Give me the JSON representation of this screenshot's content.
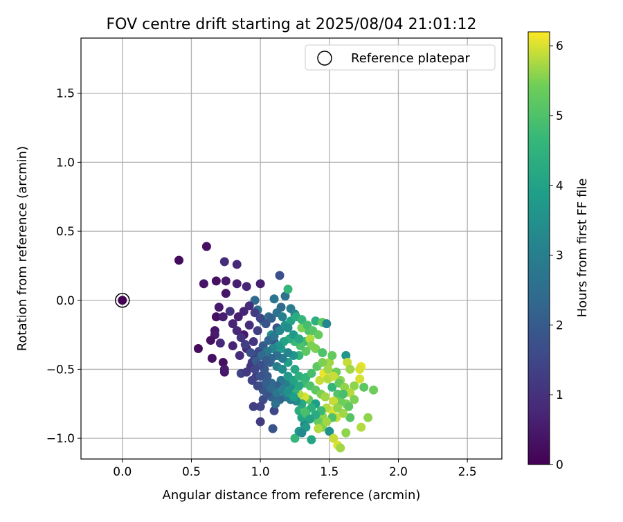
{
  "chart_data": {
    "type": "scatter",
    "title": "FOV centre drift starting at 2025/08/04 21:01:12",
    "xlabel": "Angular distance from reference (arcmin)",
    "ylabel": "Rotation from reference (arcmin)",
    "xlim": [
      -0.3,
      2.75
    ],
    "ylim": [
      -1.15,
      1.9
    ],
    "x_ticks": [
      0.0,
      0.5,
      1.0,
      1.5,
      2.0,
      2.5
    ],
    "y_ticks": [
      -1.0,
      -0.5,
      0.0,
      0.5,
      1.0,
      1.5
    ],
    "x_tick_labels": [
      "0.0",
      "0.5",
      "1.0",
      "1.5",
      "2.0",
      "2.5"
    ],
    "y_tick_labels": [
      "−1.0",
      "−0.5",
      "0.0",
      "0.5",
      "1.0",
      "1.5"
    ],
    "grid": true,
    "colormap": "viridis",
    "colorbar": {
      "label": "Hours from first FF file",
      "range": [
        0,
        6.2
      ],
      "ticks": [
        0,
        1,
        2,
        3,
        4,
        5,
        6
      ],
      "tick_labels": [
        "0",
        "1",
        "2",
        "3",
        "4",
        "5",
        "6"
      ]
    },
    "legend": {
      "position": "upper right",
      "entries": [
        {
          "label": "Reference platepar",
          "marker": "open-circle"
        }
      ]
    },
    "reference_point": {
      "x": 0.0,
      "y": 0.0,
      "hours": 0.0
    },
    "points": [
      [
        0.0,
        0.0,
        0.0
      ],
      [
        0.41,
        0.29,
        0.2
      ],
      [
        0.61,
        0.39,
        0.3
      ],
      [
        0.59,
        0.12,
        0.4
      ],
      [
        0.68,
        0.14,
        0.3
      ],
      [
        0.75,
        0.14,
        0.5
      ],
      [
        0.75,
        0.05,
        0.4
      ],
      [
        0.74,
        0.28,
        0.9
      ],
      [
        0.83,
        0.26,
        0.8
      ],
      [
        0.83,
        0.12,
        0.6
      ],
      [
        0.9,
        0.1,
        0.7
      ],
      [
        1.0,
        0.12,
        0.6
      ],
      [
        1.14,
        0.18,
        1.7
      ],
      [
        0.7,
        -0.05,
        0.5
      ],
      [
        0.68,
        -0.12,
        0.3
      ],
      [
        0.73,
        -0.12,
        0.6
      ],
      [
        0.78,
        -0.08,
        1.0
      ],
      [
        0.67,
        -0.22,
        0.4
      ],
      [
        0.67,
        -0.25,
        0.5
      ],
      [
        0.64,
        -0.29,
        0.3
      ],
      [
        0.71,
        -0.31,
        0.8
      ],
      [
        0.55,
        -0.35,
        0.2
      ],
      [
        0.65,
        -0.42,
        0.3
      ],
      [
        0.73,
        -0.45,
        0.3
      ],
      [
        0.74,
        -0.52,
        0.4
      ],
      [
        0.74,
        -0.5,
        0.5
      ],
      [
        0.8,
        -0.33,
        0.7
      ],
      [
        0.85,
        -0.4,
        0.9
      ],
      [
        0.86,
        -0.53,
        1.4
      ],
      [
        0.88,
        -0.25,
        0.5
      ],
      [
        0.9,
        -0.35,
        0.8
      ],
      [
        0.92,
        -0.18,
        0.9
      ],
      [
        0.95,
        -0.3,
        1.1
      ],
      [
        0.98,
        -0.22,
        1.3
      ],
      [
        0.94,
        -0.45,
        1.2
      ],
      [
        0.97,
        -0.55,
        1.3
      ],
      [
        1.0,
        -0.62,
        1.5
      ],
      [
        1.02,
        -0.72,
        1.6
      ],
      [
        1.0,
        -0.77,
        1.4
      ],
      [
        0.95,
        -0.77,
        1.3
      ],
      [
        1.0,
        -0.88,
        1.2
      ],
      [
        1.1,
        -0.8,
        1.5
      ],
      [
        1.09,
        -0.93,
        1.8
      ],
      [
        1.05,
        -0.4,
        1.6
      ],
      [
        1.1,
        -0.3,
        1.8
      ],
      [
        1.12,
        -0.2,
        1.9
      ],
      [
        1.15,
        -0.05,
        2.4
      ],
      [
        1.18,
        0.03,
        2.6
      ],
      [
        1.22,
        -0.06,
        2.9
      ],
      [
        1.25,
        -0.1,
        3.2
      ],
      [
        1.2,
        0.08,
        4.6
      ],
      [
        1.1,
        0.01,
        2.7
      ],
      [
        1.06,
        -0.12,
        2.4
      ],
      [
        0.98,
        -0.07,
        2.6
      ],
      [
        0.96,
        0.0,
        2.4
      ],
      [
        1.02,
        -0.15,
        3.1
      ],
      [
        1.08,
        -0.25,
        3.5
      ],
      [
        1.15,
        -0.35,
        3.8
      ],
      [
        1.2,
        -0.45,
        3.9
      ],
      [
        1.25,
        -0.5,
        4.2
      ],
      [
        1.28,
        -0.4,
        4.6
      ],
      [
        1.32,
        -0.3,
        4.8
      ],
      [
        1.35,
        -0.22,
        5.0
      ],
      [
        1.4,
        -0.15,
        4.4
      ],
      [
        1.45,
        -0.16,
        5.2
      ],
      [
        1.48,
        -0.17,
        3.2
      ],
      [
        1.3,
        -0.2,
        5.5
      ],
      [
        1.36,
        -0.28,
        5.8
      ],
      [
        1.4,
        -0.35,
        5.5
      ],
      [
        1.45,
        -0.38,
        5.0
      ],
      [
        1.5,
        -0.45,
        5.7
      ],
      [
        1.52,
        -0.4,
        5.3
      ],
      [
        1.55,
        -0.52,
        5.4
      ],
      [
        1.58,
        -0.58,
        5.6
      ],
      [
        1.62,
        -0.4,
        3.6
      ],
      [
        1.63,
        -0.45,
        5.9
      ],
      [
        1.65,
        -0.5,
        5.7
      ],
      [
        1.68,
        -0.62,
        5.6
      ],
      [
        1.72,
        -0.57,
        6.0
      ],
      [
        1.73,
        -0.48,
        6.1
      ],
      [
        1.72,
        -0.5,
        6.0
      ],
      [
        1.75,
        -0.63,
        5.2
      ],
      [
        1.82,
        -0.65,
        5.4
      ],
      [
        1.78,
        -0.85,
        5.6
      ],
      [
        1.73,
        -0.92,
        5.8
      ],
      [
        1.65,
        -0.85,
        5.1
      ],
      [
        1.62,
        -0.75,
        5.5
      ],
      [
        1.6,
        -0.82,
        5.7
      ],
      [
        1.55,
        -0.85,
        5.9
      ],
      [
        1.52,
        -0.8,
        6.0
      ],
      [
        1.48,
        -0.78,
        5.8
      ],
      [
        1.45,
        -0.84,
        5.6
      ],
      [
        1.42,
        -0.88,
        5.3
      ],
      [
        1.45,
        -0.92,
        5.5
      ],
      [
        1.5,
        -0.95,
        3.5
      ],
      [
        1.53,
        -1.0,
        5.9
      ],
      [
        1.56,
        -1.05,
        6.0
      ],
      [
        1.58,
        -1.07,
        5.7
      ],
      [
        1.62,
        -0.96,
        5.6
      ],
      [
        1.37,
        -1.01,
        4.1
      ],
      [
        1.25,
        -1.0,
        4.6
      ],
      [
        1.28,
        -0.95,
        3.7
      ],
      [
        1.32,
        -0.9,
        3.2
      ],
      [
        1.3,
        -0.85,
        4.0
      ],
      [
        1.28,
        -0.8,
        4.3
      ],
      [
        1.32,
        -0.8,
        5.0
      ],
      [
        1.35,
        -0.72,
        5.3
      ],
      [
        1.32,
        -0.7,
        6.0
      ],
      [
        1.28,
        -0.68,
        5.8
      ],
      [
        1.25,
        -0.65,
        4.5
      ],
      [
        1.22,
        -0.62,
        3.5
      ],
      [
        1.18,
        -0.6,
        3.0
      ],
      [
        1.15,
        -0.58,
        2.8
      ],
      [
        1.12,
        -0.62,
        2.1
      ],
      [
        1.08,
        -0.6,
        2.4
      ],
      [
        1.05,
        -0.55,
        2.0
      ],
      [
        1.03,
        -0.5,
        1.9
      ],
      [
        1.07,
        -0.45,
        2.2
      ],
      [
        1.12,
        -0.48,
        3.0
      ],
      [
        1.16,
        -0.5,
        3.4
      ],
      [
        1.2,
        -0.55,
        3.8
      ],
      [
        1.24,
        -0.58,
        4.0
      ],
      [
        1.28,
        -0.55,
        4.4
      ],
      [
        1.32,
        -0.6,
        4.8
      ],
      [
        1.36,
        -0.62,
        5.0
      ],
      [
        1.4,
        -0.65,
        5.2
      ],
      [
        1.44,
        -0.68,
        5.5
      ],
      [
        1.47,
        -0.7,
        5.7
      ],
      [
        1.43,
        -0.58,
        5.9
      ],
      [
        1.46,
        -0.53,
        6.1
      ],
      [
        1.49,
        -0.57,
        5.8
      ],
      [
        1.52,
        -0.63,
        4.6
      ],
      [
        1.56,
        -0.68,
        5.1
      ],
      [
        1.58,
        -0.73,
        5.4
      ],
      [
        1.53,
        -0.73,
        5.9
      ],
      [
        1.4,
        -0.75,
        3.9
      ],
      [
        1.37,
        -0.78,
        4.4
      ],
      [
        1.33,
        -0.82,
        4.9
      ],
      [
        1.3,
        -0.75,
        4.2
      ],
      [
        1.26,
        -0.73,
        3.4
      ],
      [
        1.22,
        -0.72,
        2.9
      ],
      [
        1.18,
        -0.7,
        2.7
      ],
      [
        1.14,
        -0.72,
        2.3
      ],
      [
        1.11,
        -0.75,
        2.6
      ],
      [
        1.08,
        -0.7,
        2.2
      ],
      [
        1.05,
        -0.68,
        1.8
      ],
      [
        1.02,
        -0.65,
        1.9
      ],
      [
        0.98,
        -0.62,
        1.6
      ],
      [
        0.94,
        -0.58,
        1.4
      ],
      [
        0.9,
        -0.52,
        1.2
      ],
      [
        0.93,
        -0.48,
        1.1
      ],
      [
        0.96,
        -0.42,
        1.3
      ],
      [
        0.99,
        -0.37,
        1.5
      ],
      [
        1.02,
        -0.33,
        2.0
      ],
      [
        1.06,
        -0.29,
        2.3
      ],
      [
        1.1,
        -0.26,
        2.7
      ],
      [
        1.14,
        -0.22,
        3.2
      ],
      [
        1.18,
        -0.18,
        3.6
      ],
      [
        1.22,
        -0.15,
        4.0
      ],
      [
        1.26,
        -0.12,
        4.3
      ],
      [
        1.3,
        -0.14,
        4.6
      ],
      [
        1.34,
        -0.18,
        4.9
      ],
      [
        1.38,
        -0.22,
        5.1
      ],
      [
        1.42,
        -0.25,
        5.3
      ],
      [
        1.37,
        -0.33,
        5.5
      ],
      [
        1.33,
        -0.37,
        5.2
      ],
      [
        1.29,
        -0.33,
        5.0
      ],
      [
        1.25,
        -0.3,
        4.7
      ],
      [
        1.21,
        -0.28,
        4.3
      ],
      [
        1.17,
        -0.3,
        4.0
      ],
      [
        1.13,
        -0.33,
        3.6
      ],
      [
        1.09,
        -0.35,
        3.2
      ],
      [
        1.05,
        -0.37,
        2.8
      ],
      [
        1.01,
        -0.4,
        2.4
      ],
      [
        0.97,
        -0.44,
        2.0
      ],
      [
        0.93,
        -0.38,
        1.7
      ],
      [
        0.89,
        -0.32,
        1.3
      ],
      [
        0.86,
        -0.27,
        1.0
      ],
      [
        0.83,
        -0.22,
        0.8
      ],
      [
        0.8,
        -0.17,
        0.7
      ],
      [
        0.84,
        -0.12,
        0.6
      ],
      [
        0.88,
        -0.08,
        0.7
      ],
      [
        0.92,
        -0.04,
        0.9
      ],
      [
        0.96,
        -0.09,
        1.2
      ],
      [
        1.0,
        -0.13,
        1.5
      ],
      [
        1.04,
        -0.17,
        1.8
      ],
      [
        1.08,
        -0.13,
        2.1
      ],
      [
        1.12,
        -0.09,
        2.6
      ],
      [
        1.16,
        -0.12,
        3.0
      ],
      [
        1.2,
        -0.2,
        3.4
      ],
      [
        1.24,
        -0.25,
        3.8
      ],
      [
        1.28,
        -0.28,
        4.2
      ],
      [
        1.24,
        -0.4,
        3.6
      ],
      [
        1.2,
        -0.38,
        3.2
      ],
      [
        1.16,
        -0.42,
        2.9
      ],
      [
        1.12,
        -0.4,
        2.6
      ],
      [
        1.08,
        -0.42,
        2.3
      ],
      [
        1.04,
        -0.44,
        2.0
      ],
      [
        1.0,
        -0.47,
        1.7
      ],
      [
        0.96,
        -0.5,
        1.5
      ],
      [
        1.0,
        -0.55,
        1.8
      ],
      [
        1.04,
        -0.6,
        2.1
      ],
      [
        1.08,
        -0.64,
        2.4
      ],
      [
        1.12,
        -0.67,
        2.7
      ],
      [
        1.16,
        -0.65,
        3.1
      ],
      [
        1.2,
        -0.67,
        3.5
      ],
      [
        1.24,
        -0.7,
        3.9
      ],
      [
        1.28,
        -0.62,
        4.2
      ],
      [
        1.33,
        -0.56,
        4.6
      ],
      [
        1.37,
        -0.53,
        4.9
      ],
      [
        1.41,
        -0.48,
        5.2
      ],
      [
        1.45,
        -0.45,
        5.5
      ],
      [
        1.49,
        -0.5,
        5.7
      ],
      [
        1.53,
        -0.55,
        5.9
      ],
      [
        1.57,
        -0.6,
        5.3
      ],
      [
        1.61,
        -0.63,
        5.6
      ],
      [
        1.65,
        -0.67,
        5.8
      ],
      [
        1.68,
        -0.72,
        5.5
      ],
      [
        1.64,
        -0.77,
        5.2
      ],
      [
        1.6,
        -0.68,
        4.9
      ],
      [
        1.56,
        -0.78,
        5.6
      ],
      [
        1.52,
        -0.85,
        5.0
      ],
      [
        1.48,
        -0.88,
        5.7
      ],
      [
        1.44,
        -0.8,
        4.7
      ],
      [
        1.4,
        -0.83,
        4.3
      ],
      [
        1.36,
        -0.86,
        4.0
      ],
      [
        1.33,
        -0.92,
        3.8
      ],
      [
        1.3,
        -0.96,
        3.3
      ],
      [
        1.42,
        -0.93,
        5.8
      ]
    ]
  }
}
